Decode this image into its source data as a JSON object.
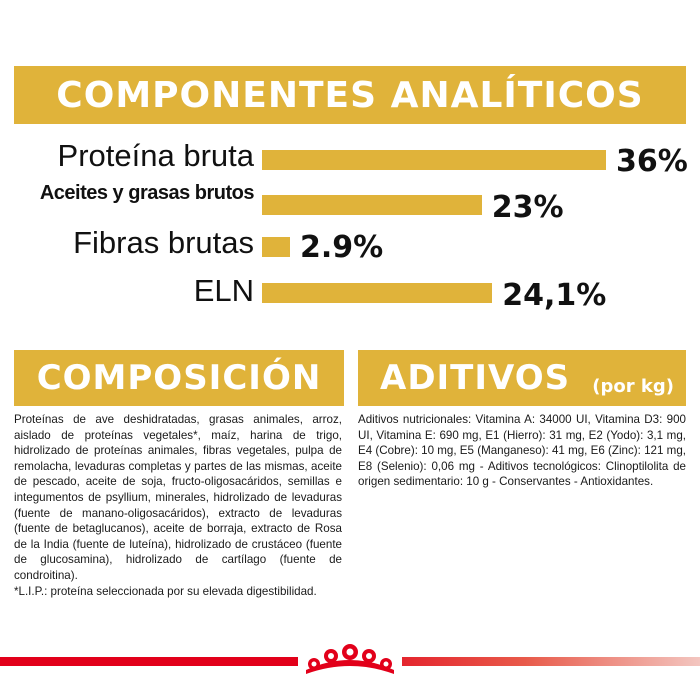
{
  "analytics": {
    "title": "COMPONENTES ANALÍTICOS",
    "rows": [
      {
        "label": "Proteína bruta",
        "value": "36%",
        "percent": 36
      },
      {
        "label": "Aceites y grasas brutos",
        "value": "23%",
        "percent": 23
      },
      {
        "label": "Fibras brutas",
        "value": "2.9%",
        "percent": 2.9
      },
      {
        "label": "ELN",
        "value": "24,1%",
        "percent": 24.1
      }
    ]
  },
  "composicion": {
    "title": "COMPOSICIÓN",
    "text": "Proteínas de ave deshidratadas, grasas animales, arroz, aislado de proteínas vegetales*, maíz, harina de trigo, hidrolizado de proteínas animales, fibras vegetales, pulpa de remolacha, levaduras completas y partes de las mismas, aceite de pescado, aceite de soja, fructo-oligosacáridos, semillas e integumentos de psyllium, minerales, hidrolizado de levaduras (fuente de manano-oligosacáridos), extracto de levaduras (fuente de betaglucanos), aceite de borraja, extracto de Rosa de la India (fuente de luteína), hidrolizado de crustáceo (fuente de glucosamina), hidrolizado de cartílago (fuente de condroitina).",
    "note": "*L.I.P.: proteína seleccionada por su elevada digestibilidad."
  },
  "aditivos": {
    "title": "ADITIVOS",
    "subtitle": "(por kg)",
    "text": "Aditivos nutricionales: Vitamina A: 34000 UI, Vitamina D3: 900 UI, Vitamina E: 690 mg, E1 (Hierro): 31 mg, E2 (Yodo): 3,1 mg, E4 (Cobre): 10 mg, E5 (Manganeso): 41 mg, E6 (Zinc): 121 mg, E8 (Selenio): 0,06 mg - Aditivos tecnológicos: Clinoptilolita de origen sedimentario: 10 g - Conservantes - Antioxidantes."
  },
  "colors": {
    "gold": "#e0b33a",
    "red": "#e2001a"
  },
  "logo_icon": "royal-canin-crown-icon"
}
